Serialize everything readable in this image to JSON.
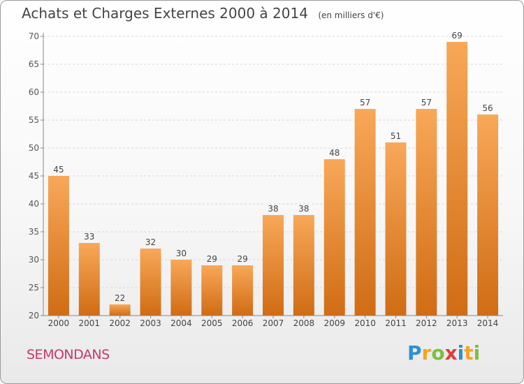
{
  "header": {
    "title": "Achats et Charges Externes 2000 à 2014",
    "subtitle": "(en milliers d'€)"
  },
  "footer": {
    "city": "SEMONDANS",
    "logo": [
      "P",
      "r",
      "o",
      "x",
      "i",
      "t",
      "i"
    ]
  },
  "colors": {
    "bar_light": "#f8a858",
    "bar_dark": "#d06c14",
    "city": "#c43a69"
  },
  "chart_data": {
    "type": "bar",
    "title": "Achats et Charges Externes 2000 à 2014",
    "subtitle": "(en milliers d'€)",
    "categories": [
      "2000",
      "2001",
      "2002",
      "2003",
      "2004",
      "2005",
      "2006",
      "2007",
      "2008",
      "2009",
      "2010",
      "2011",
      "2012",
      "2013",
      "2014"
    ],
    "values": [
      45,
      33,
      22,
      32,
      30,
      29,
      29,
      38,
      38,
      48,
      57,
      51,
      57,
      69,
      56
    ],
    "ylim": [
      20,
      70
    ],
    "yticks": [
      20,
      25,
      30,
      35,
      40,
      45,
      50,
      55,
      60,
      65,
      70
    ],
    "grid": true,
    "xlabel": "",
    "ylabel": ""
  }
}
